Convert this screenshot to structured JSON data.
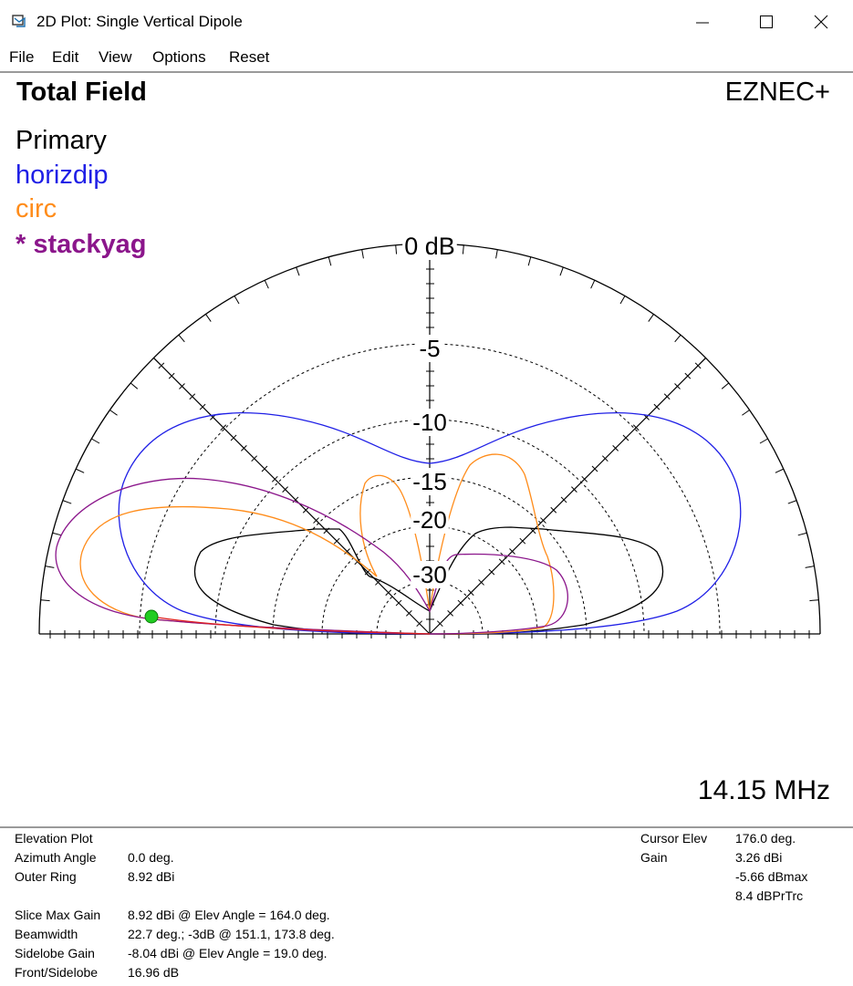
{
  "window": {
    "title": "2D Plot: Single Vertical Dipole"
  },
  "menu": {
    "items": [
      "File",
      "Edit",
      "View",
      "Options",
      "Reset"
    ]
  },
  "plot": {
    "title": "Total Field",
    "brand": "EZNEC+",
    "frequency": "14.15 MHz",
    "legend": [
      {
        "label": "Primary",
        "color": "#000000",
        "bold": false
      },
      {
        "label": "horizdip",
        "color": "#1f1fe6",
        "bold": false
      },
      {
        "label": "circ",
        "color": "#ff8c1a",
        "bold": false
      },
      {
        "label": "* stackyag",
        "color": "#8b168b",
        "bold": true
      }
    ],
    "ring_labels": [
      "0 dB",
      "-5",
      "-10",
      "-15",
      "-20",
      "-30"
    ],
    "cursor_color": "#22cc22"
  },
  "chart_data": {
    "type": "polar-elevation",
    "title": "Total Field",
    "angle_range_deg": [
      0,
      180
    ],
    "rings_db": [
      0,
      -5,
      -10,
      -15,
      -20,
      -30
    ],
    "outer_ring_dbi": 8.92,
    "cursor_elevation_deg": 176.0,
    "series": [
      {
        "name": "Primary",
        "color": "#000000",
        "approx_peak_db": -18.5,
        "approx_peak_elev_deg": 12
      },
      {
        "name": "horizdip",
        "color": "#1f1fe6",
        "approx_peak_db": -6.5,
        "approx_peak_elev_deg": 38
      },
      {
        "name": "circ",
        "color": "#ff8c1a",
        "approx_peak_db": -2.6,
        "approx_peak_elev_deg": 160
      },
      {
        "name": "* stackyag",
        "color": "#8b168b",
        "approx_peak_db": 0.0,
        "approx_peak_elev_deg": 164
      }
    ]
  },
  "info": {
    "left": [
      {
        "label": "Elevation Plot",
        "value": ""
      },
      {
        "label": "Azimuth Angle",
        "value": "0.0 deg."
      },
      {
        "label": "Outer Ring",
        "value": "8.92 dBi"
      },
      {
        "label": "Slice Max Gain",
        "value": "8.92 dBi @ Elev Angle = 164.0 deg."
      },
      {
        "label": "Beamwidth",
        "value": "22.7 deg.; -3dB @ 151.1, 173.8 deg."
      },
      {
        "label": "Sidelobe Gain",
        "value": "-8.04 dBi @ Elev Angle = 19.0 deg."
      },
      {
        "label": "Front/Sidelobe",
        "value": "16.96 dB"
      }
    ],
    "right": [
      {
        "label": "Cursor Elev",
        "value": "176.0 deg."
      },
      {
        "label": "Gain",
        "value": "3.26 dBi"
      },
      {
        "label": "",
        "value": "-5.66 dBmax"
      },
      {
        "label": "",
        "value": "8.4 dBPrTrc"
      }
    ]
  }
}
